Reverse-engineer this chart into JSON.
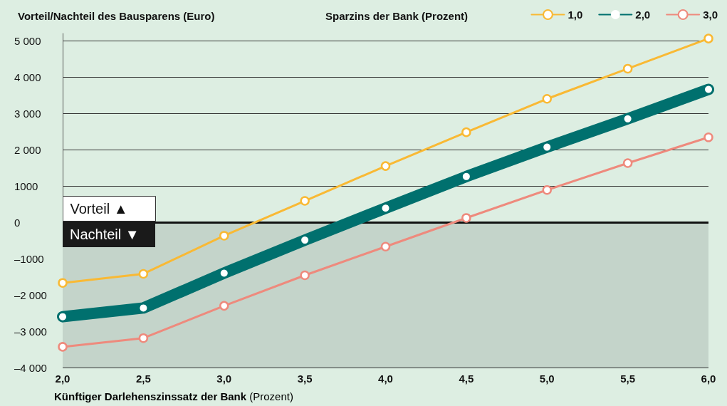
{
  "chart_data": {
    "type": "line",
    "title": "Vorteil/Nachteil des Bausparens (Euro)",
    "xlabel": "Künftiger Darlehenszinssatz der Bank (Prozent)",
    "legend_title": "Sparzins der Bank (Prozent)",
    "x": [
      2.0,
      2.5,
      3.0,
      3.5,
      4.0,
      4.5,
      5.0,
      5.5,
      6.0
    ],
    "series": [
      {
        "name": "1,0",
        "color": "#f9b934",
        "values": [
          -1670,
          -1420,
          -370,
          590,
          1550,
          2480,
          3400,
          4230,
          5060
        ]
      },
      {
        "name": "2,0",
        "color": "#00706e",
        "values": [
          -2600,
          -2360,
          -1400,
          -490,
          390,
          1260,
          2070,
          2850,
          3660
        ]
      },
      {
        "name": "3,0",
        "color": "#ee8a7d",
        "values": [
          -3430,
          -3190,
          -2300,
          -1460,
          -670,
          120,
          890,
          1630,
          2340
        ]
      }
    ],
    "xlim": [
      2,
      6
    ],
    "xticks": [
      {
        "value": 2,
        "label": "2,0"
      },
      {
        "value": 2.5,
        "label": "2,5"
      },
      {
        "value": 3,
        "label": "3,0"
      },
      {
        "value": 3.5,
        "label": "3,5"
      },
      {
        "value": 4,
        "label": "4,0"
      },
      {
        "value": 4.5,
        "label": "4,5"
      },
      {
        "value": 5,
        "label": "5,0"
      },
      {
        "value": 5.5,
        "label": "5,5"
      },
      {
        "value": 6,
        "label": "6,0"
      }
    ],
    "ylim": [
      -4000,
      5200
    ],
    "yticks": [
      {
        "value": -4000,
        "label": "–4 000"
      },
      {
        "value": -3000,
        "label": "–3 000"
      },
      {
        "value": -2000,
        "label": "–2 000"
      },
      {
        "value": -1000,
        "label": "–1000"
      },
      {
        "value": 0,
        "label": "0"
      },
      1000,
      {
        "value": 2000,
        "label": "2 000"
      },
      {
        "value": 3000,
        "label": "3 000"
      },
      {
        "value": 4000,
        "label": "4 000"
      },
      {
        "value": 5000,
        "label": "5 000"
      }
    ],
    "ref_lines": [
      {
        "axis": "y",
        "value": 0,
        "color": "#111111"
      }
    ],
    "bands": [
      {
        "axis": "y",
        "from": -4000,
        "to": 0,
        "color": "#c4d4ca"
      }
    ],
    "annotations": [
      "Vorteil ▲",
      "Nachteil ▼"
    ],
    "grid": "y",
    "legend": "top right",
    "marker": "circle",
    "line_style": "solid"
  }
}
